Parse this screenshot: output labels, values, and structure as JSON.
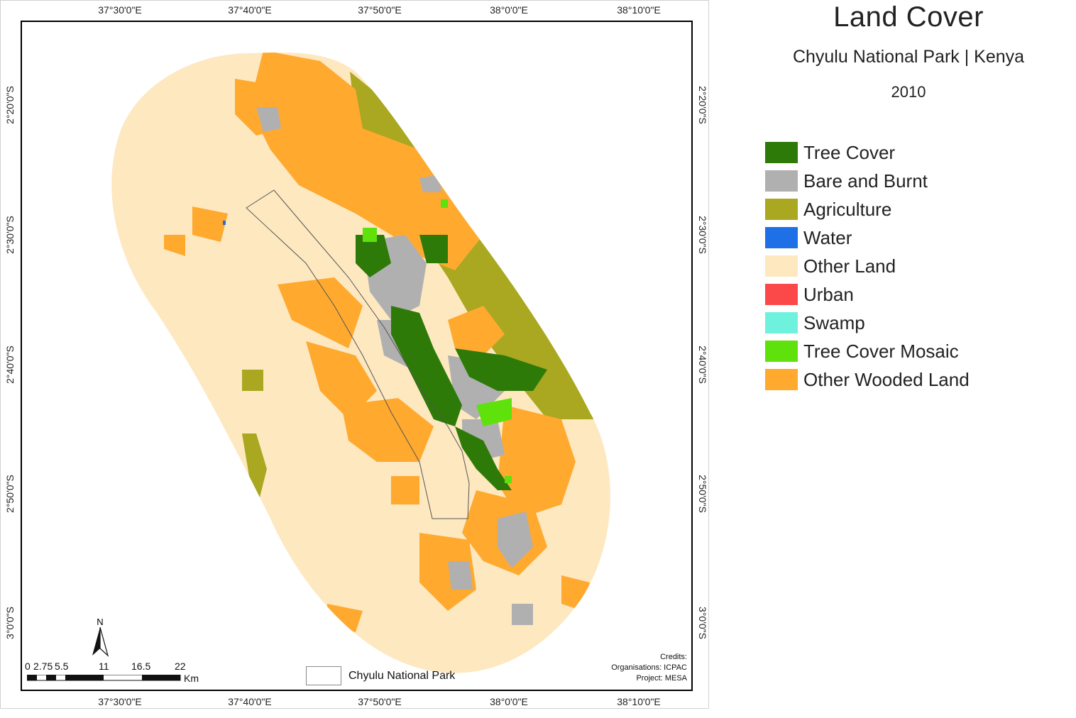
{
  "title": "Land Cover",
  "subtitle": "Chyulu National Park | Kenya",
  "year": "2010",
  "legend": [
    {
      "label": "Tree Cover",
      "color": "#2e7a08"
    },
    {
      "label": "Bare and Burnt",
      "color": "#b0b0b0"
    },
    {
      "label": "Agriculture",
      "color": "#a9a820"
    },
    {
      "label": "Water",
      "color": "#1f6fe6"
    },
    {
      "label": "Other Land",
      "color": "#fde8c0"
    },
    {
      "label": "Urban",
      "color": "#fb4848"
    },
    {
      "label": "Swamp",
      "color": "#6ef2de"
    },
    {
      "label": "Tree Cover Mosaic",
      "color": "#5fe10c"
    },
    {
      "label": "Other Wooded Land",
      "color": "#ffa92f"
    }
  ],
  "axes": {
    "longitudes": [
      "37°30'0\"E",
      "37°40'0\"E",
      "37°50'0\"E",
      "38°0'0\"E",
      "38°10'0\"E"
    ],
    "latitudes": [
      "2°20'0\"S",
      "2°30'0\"S",
      "2°40'0\"S",
      "2°50'0\"S",
      "3°0'0\"S"
    ]
  },
  "park_legend_label": "Chyulu National Park",
  "scale_bar": {
    "ticks": [
      "0",
      "2.75",
      "5.5",
      "11",
      "16.5",
      "22"
    ],
    "unit": "Km"
  },
  "north_arrow": {
    "label": "N",
    "icon": "north-arrow-icon"
  },
  "credits": {
    "line1": "Credits:",
    "line2": "Organisations: ICPAC",
    "line3": "Project: MESA"
  }
}
